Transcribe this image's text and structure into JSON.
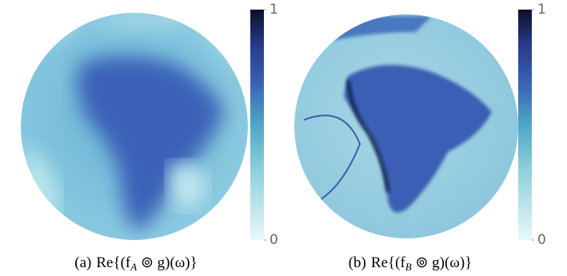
{
  "panels": [
    {
      "caption": {
        "label": "(a)",
        "pre": "Re{(f",
        "sub": "A",
        "post": " ⊚ g)(ω)}"
      },
      "colorbar": {
        "ticks": [
          0,
          1
        ]
      }
    },
    {
      "caption": {
        "label": "(b)",
        "pre": "Re{(f",
        "sub": "B",
        "post": " ⊚ g)(ω)}"
      },
      "colorbar": {
        "ticks": [
          0,
          1
        ]
      }
    }
  ]
}
